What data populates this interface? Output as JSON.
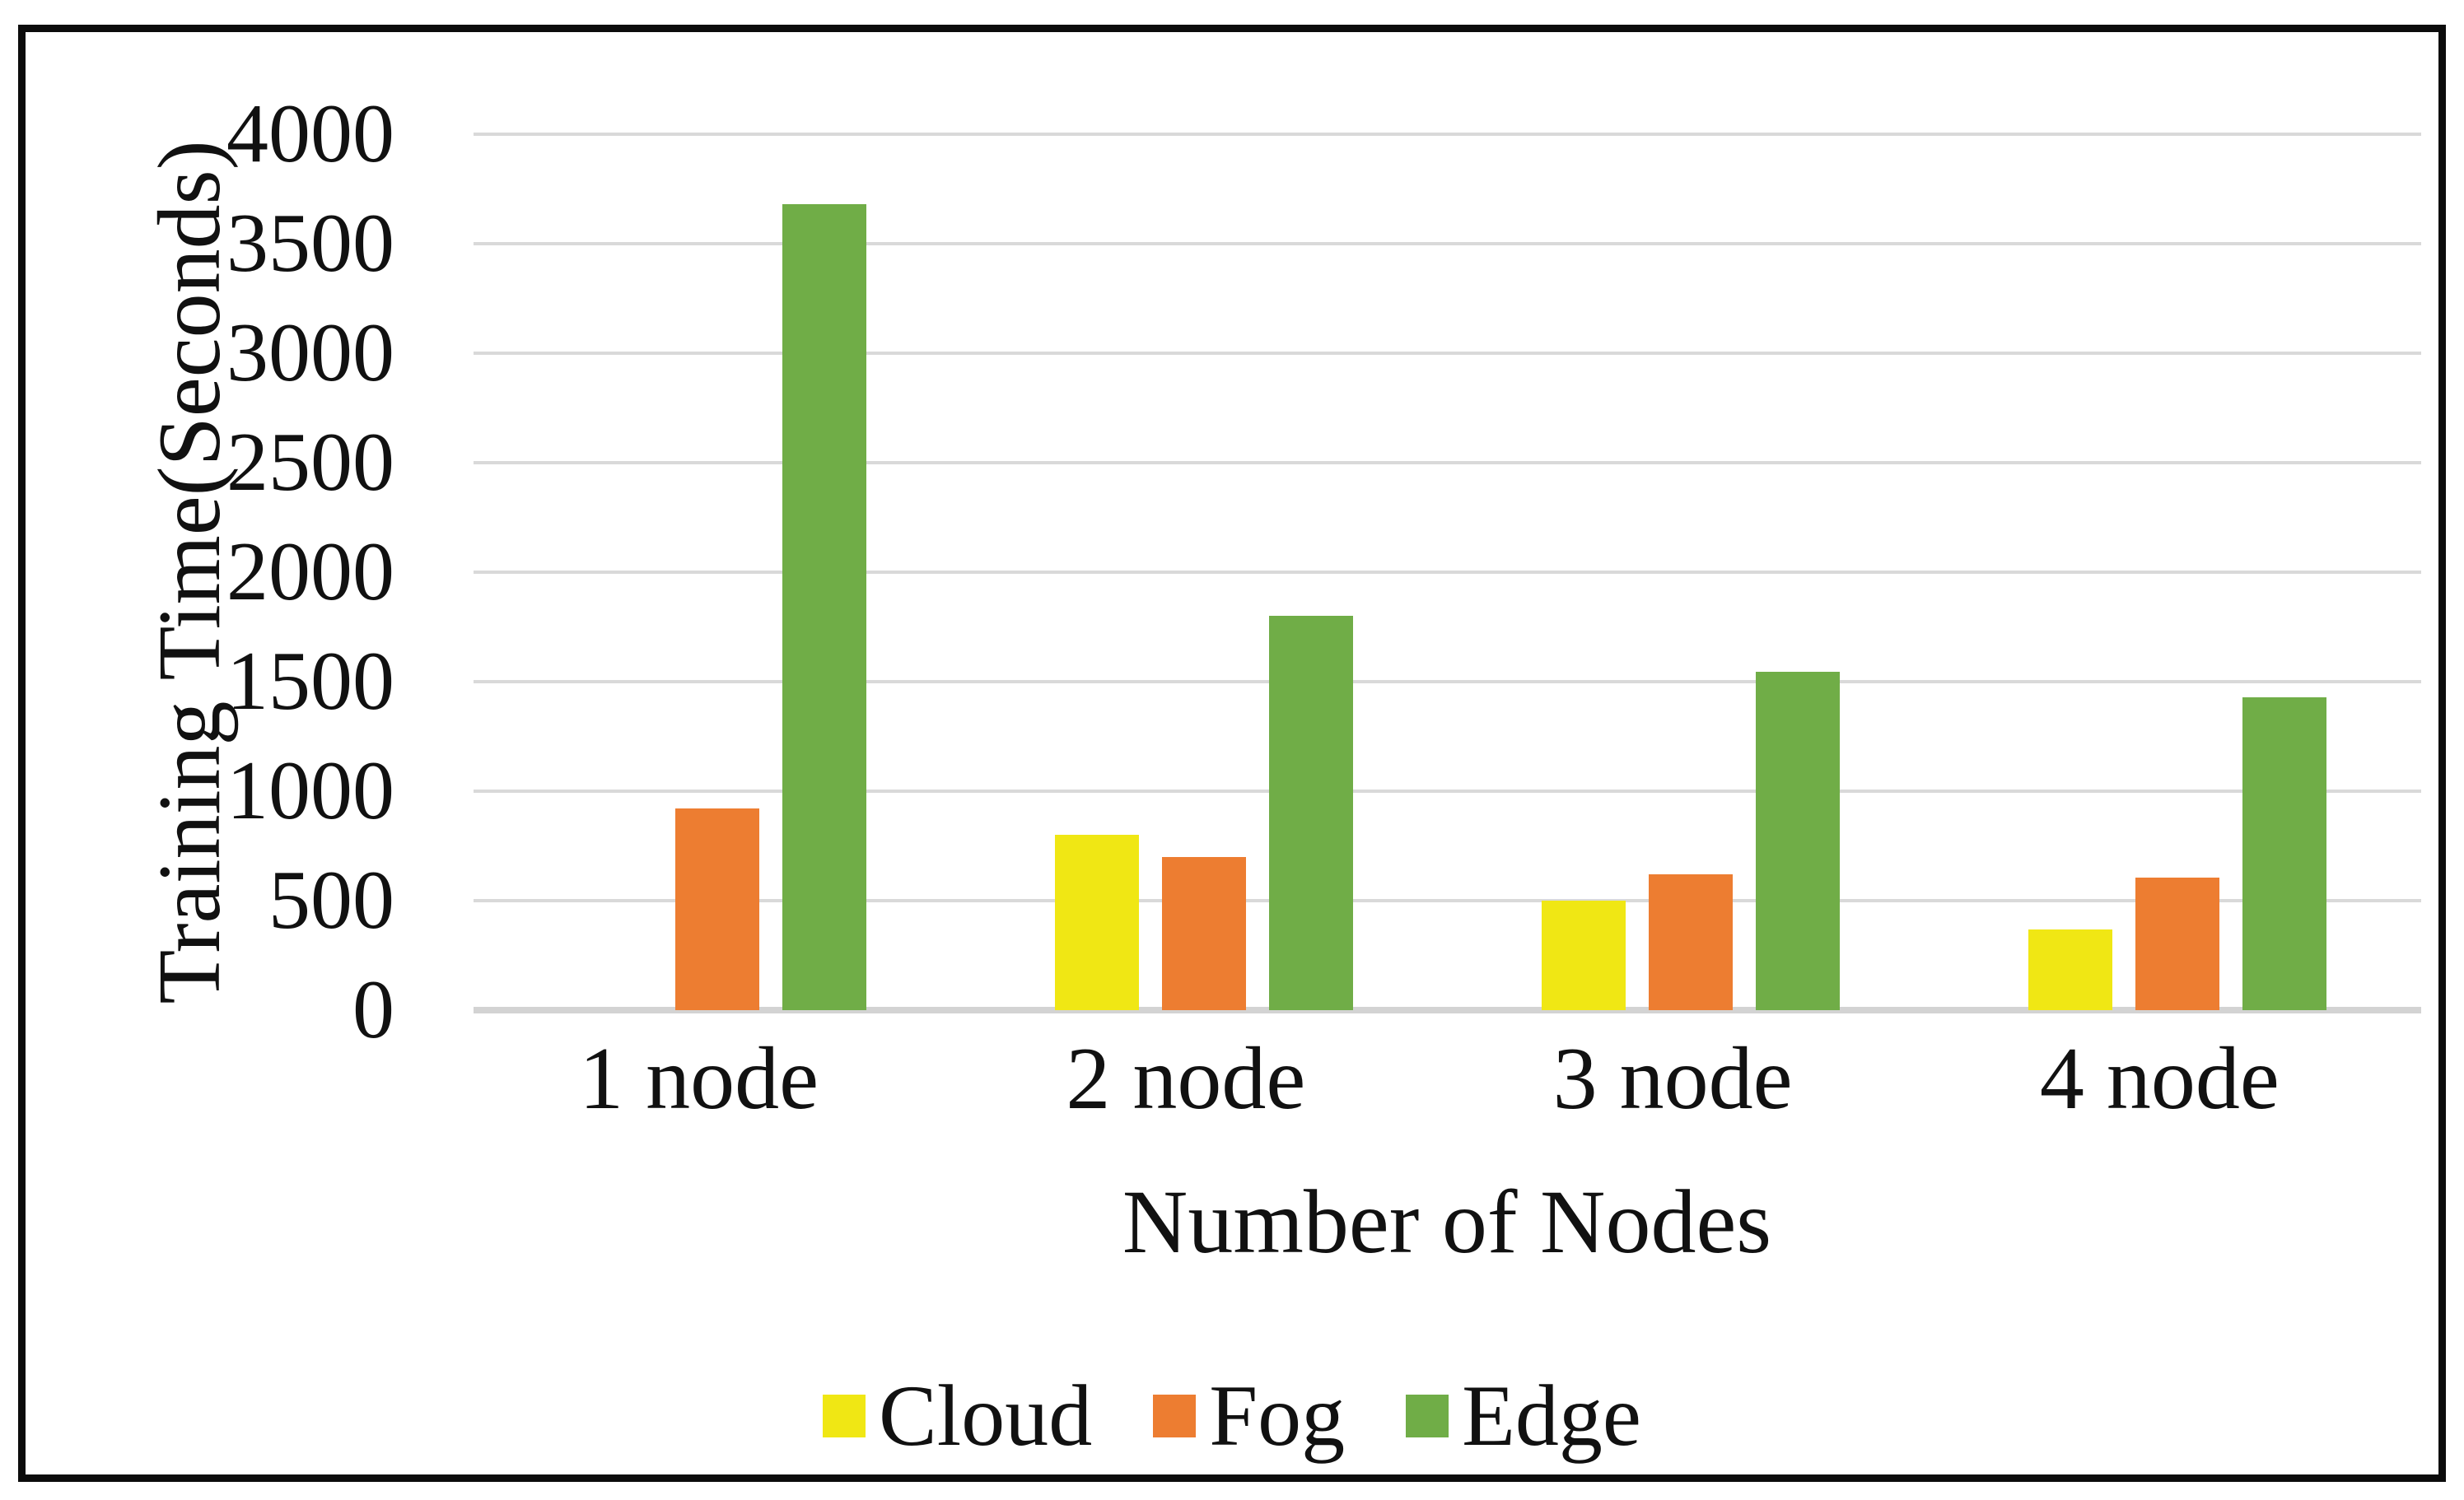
{
  "chart_data": {
    "type": "bar",
    "title": "",
    "categories": [
      "1 node",
      "2 node",
      "3 node",
      "4 node"
    ],
    "series": [
      {
        "name": "Cloud",
        "color": "#F0E714",
        "values": [
          0,
          800,
          500,
          370
        ]
      },
      {
        "name": "Fog",
        "color": "#ED7D31",
        "values": [
          920,
          700,
          620,
          605
        ]
      },
      {
        "name": "Edge",
        "color": "#70AD47",
        "values": [
          3680,
          1800,
          1545,
          1430
        ]
      }
    ],
    "xlabel": "Number of Nodes",
    "ylabel": "Training Time(Seconds)",
    "ylim": [
      0,
      4000
    ],
    "y_ticks": [
      0,
      500,
      1000,
      1500,
      2000,
      2500,
      3000,
      3500,
      4000
    ],
    "grid": "horizontal",
    "grid_color": "#D9D9D9",
    "axis_line_color": "#D3D3D3",
    "frame_color": "#0C0C0C",
    "legend_position": "bottom"
  }
}
